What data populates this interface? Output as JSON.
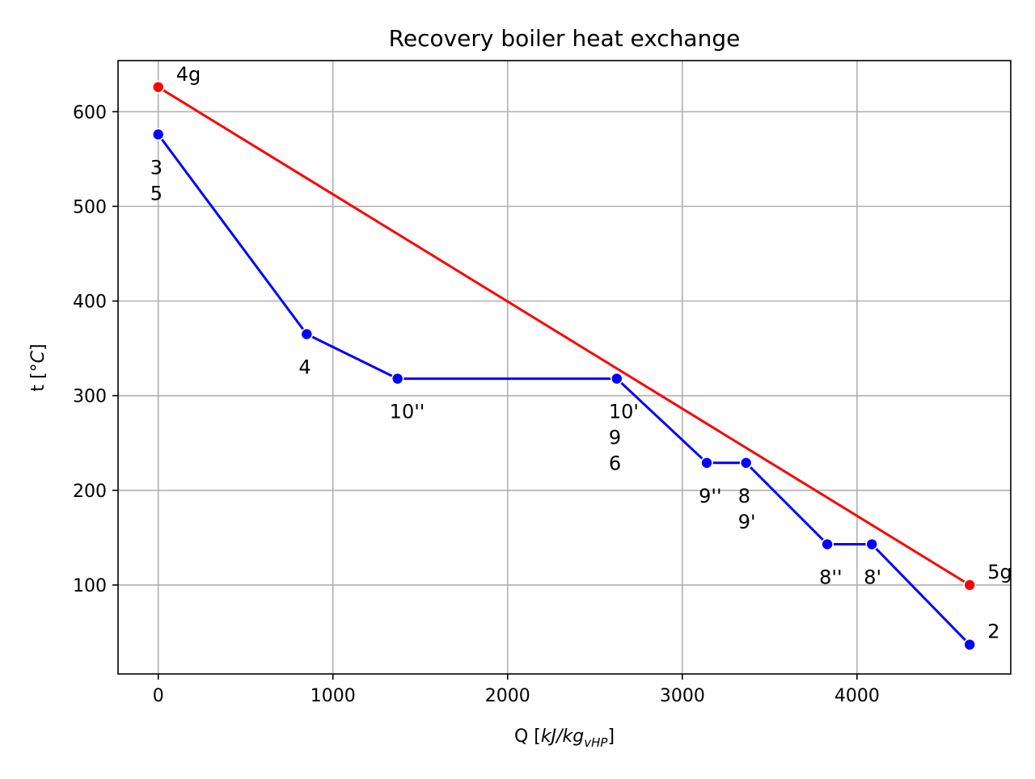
{
  "chart_data": {
    "type": "line",
    "title": "Recovery boiler heat exchange",
    "xlabel": {
      "prefix": "Q [",
      "unit": "kJ/kg",
      "subscript": "vHP",
      "suffix": "]"
    },
    "ylabel": {
      "prefix": "t [°",
      "unit": "C",
      "suffix": "]"
    },
    "xlim": [
      -230,
      4880
    ],
    "ylim": [
      6,
      654
    ],
    "xticks": [
      0,
      1000,
      2000,
      3000,
      4000
    ],
    "yticks": [
      100,
      200,
      300,
      400,
      500,
      600
    ],
    "grid": true,
    "series": [
      {
        "color": "#ff0000",
        "points": [
          {
            "x": 0,
            "y": 626
          },
          {
            "x": 4645,
            "y": 100
          }
        ]
      },
      {
        "color": "#0000ff",
        "points": [
          {
            "x": 0,
            "y": 576
          },
          {
            "x": 850,
            "y": 365
          },
          {
            "x": 1370,
            "y": 318
          },
          {
            "x": 2625,
            "y": 318
          },
          {
            "x": 3140,
            "y": 229
          },
          {
            "x": 3365,
            "y": 229
          },
          {
            "x": 3830,
            "y": 143
          },
          {
            "x": 4085,
            "y": 143
          },
          {
            "x": 4645,
            "y": 37
          }
        ]
      }
    ],
    "annotations": [
      {
        "text": "4g",
        "x": 0,
        "y": 626,
        "pos": "upper-right"
      },
      {
        "text": "3\n5",
        "x": 0,
        "y": 576,
        "pos": "below"
      },
      {
        "text": "4",
        "x": 850,
        "y": 365,
        "pos": "below"
      },
      {
        "text": "10''",
        "x": 1370,
        "y": 318,
        "pos": "below"
      },
      {
        "text": "10'\n9\n6",
        "x": 2625,
        "y": 318,
        "pos": "below"
      },
      {
        "text": "9''",
        "x": 3140,
        "y": 229,
        "pos": "below"
      },
      {
        "text": "8\n9'",
        "x": 3365,
        "y": 229,
        "pos": "below"
      },
      {
        "text": "8''",
        "x": 3830,
        "y": 143,
        "pos": "below"
      },
      {
        "text": "8'",
        "x": 4085,
        "y": 143,
        "pos": "below"
      },
      {
        "text": "5g",
        "x": 4645,
        "y": 100,
        "pos": "upper-right"
      },
      {
        "text": "2",
        "x": 4645,
        "y": 37,
        "pos": "upper-right"
      }
    ]
  }
}
